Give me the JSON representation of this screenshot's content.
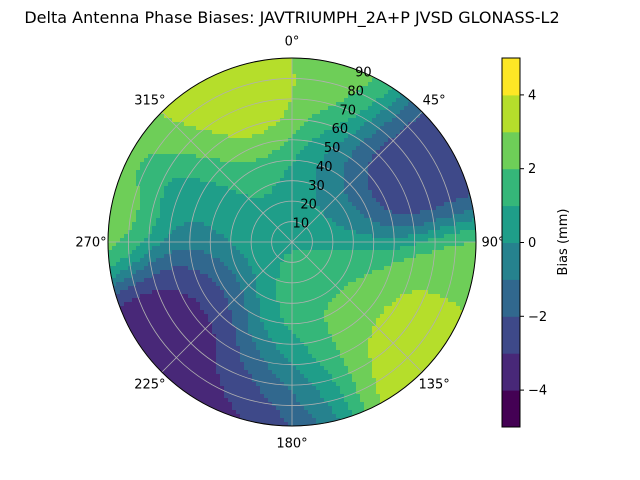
{
  "chart_data": {
    "type": "polar-contour",
    "title": "Delta Antenna Phase Biases: JAVTRIUMPH_2A+P JVSD GLONASS-L2",
    "angular_axis": {
      "zero_location": "top",
      "direction": "clockwise",
      "tick_labels": [
        "0°",
        "45°",
        "90°",
        "135°",
        "180°",
        "225°",
        "270°",
        "315°"
      ]
    },
    "radial_axis": {
      "quantity": "zenith angle",
      "range": [
        0,
        90
      ],
      "tick_labels": [
        "10",
        "20",
        "30",
        "40",
        "50",
        "60",
        "70",
        "80",
        "90"
      ]
    },
    "colorbar": {
      "label": "Bias (mm)",
      "range": [
        -5,
        5
      ],
      "tick_labels": [
        "−4",
        "−2",
        "0",
        "2",
        "4"
      ],
      "levels": [
        -5,
        -4,
        -3,
        -2,
        -1,
        0,
        1,
        2,
        3,
        4,
        5
      ],
      "colors": [
        "#440154",
        "#482878",
        "#3e4989",
        "#31688e",
        "#26828e",
        "#1f9e89",
        "#35b779",
        "#6ece58",
        "#b5de2b",
        "#fde725"
      ]
    },
    "features": [
      {
        "azimuth": 335,
        "zenith": 62,
        "value": 4.4
      },
      {
        "azimuth": 325,
        "zenith": 75,
        "value": 3.0
      },
      {
        "azimuth": 20,
        "zenith": 75,
        "value": 2.6
      },
      {
        "azimuth": 55,
        "zenith": 60,
        "value": -3.8
      },
      {
        "azimuth": 60,
        "zenith": 80,
        "value": -2.2
      },
      {
        "azimuth": 275,
        "zenith": 86,
        "value": 2.8
      },
      {
        "azimuth": 300,
        "zenith": 45,
        "value": -0.8
      },
      {
        "azimuth": 300,
        "zenith": 28,
        "value": 1.8
      },
      {
        "azimuth": 40,
        "zenith": 30,
        "value": -1.5
      },
      {
        "azimuth": 5,
        "zenith": 25,
        "value": 1.2
      },
      {
        "azimuth": 240,
        "zenith": 70,
        "value": -4.6
      },
      {
        "azimuth": 245,
        "zenith": 45,
        "value": -2.0
      },
      {
        "azimuth": 195,
        "zenith": 80,
        "value": -3.6
      },
      {
        "azimuth": 225,
        "zenith": 85,
        "value": -3.2
      },
      {
        "azimuth": 130,
        "zenith": 72,
        "value": 3.6
      },
      {
        "azimuth": 105,
        "zenith": 78,
        "value": 2.8
      },
      {
        "azimuth": 140,
        "zenith": 40,
        "value": 3.4
      },
      {
        "azimuth": 160,
        "zenith": 25,
        "value": 1.5
      },
      {
        "azimuth": 120,
        "zenith": 20,
        "value": 0.8
      },
      {
        "azimuth": 180,
        "zenith": 60,
        "value": 0.6
      }
    ]
  }
}
